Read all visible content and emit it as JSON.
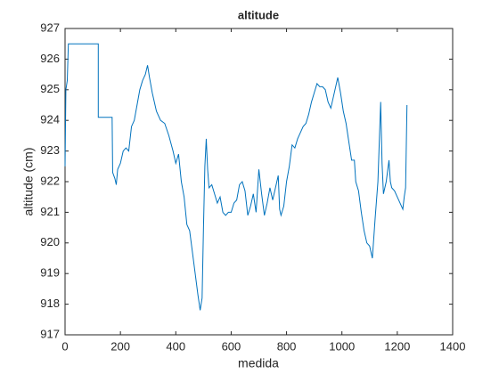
{
  "chart_data": {
    "type": "line",
    "title": "altitude",
    "x_label": "medida",
    "y_label": "altitude (cm)",
    "color": "#0072bd",
    "grid": false,
    "xlim": [
      0,
      1400
    ],
    "xticks": [
      0,
      200,
      400,
      600,
      800,
      1000,
      1200,
      1400
    ],
    "ylim": [
      917,
      927
    ],
    "yticks": [
      917,
      918,
      919,
      920,
      921,
      922,
      923,
      924,
      925,
      926,
      927
    ],
    "x": [
      0,
      3,
      8,
      12,
      120,
      120,
      170,
      172,
      180,
      185,
      190,
      200,
      210,
      220,
      230,
      240,
      250,
      260,
      270,
      280,
      290,
      298,
      305,
      315,
      330,
      345,
      360,
      375,
      390,
      400,
      410,
      420,
      430,
      440,
      450,
      460,
      470,
      480,
      488,
      495,
      500,
      505,
      510,
      515,
      520,
      530,
      540,
      550,
      560,
      570,
      580,
      590,
      600,
      610,
      620,
      630,
      640,
      650,
      660,
      670,
      680,
      690,
      700,
      710,
      720,
      730,
      740,
      750,
      760,
      770,
      775,
      780,
      790,
      800,
      810,
      820,
      830,
      840,
      850,
      860,
      870,
      880,
      890,
      900,
      910,
      920,
      930,
      940,
      950,
      960,
      970,
      980,
      985,
      995,
      1005,
      1015,
      1025,
      1035,
      1045,
      1050,
      1060,
      1070,
      1080,
      1090,
      1100,
      1110,
      1120,
      1130,
      1140,
      1145,
      1150,
      1160,
      1170,
      1175,
      1180,
      1190,
      1200,
      1210,
      1220,
      1225,
      1230,
      1235
    ],
    "values": [
      922.5,
      925.0,
      925.3,
      926.5,
      926.5,
      924.1,
      924.1,
      922.3,
      922.1,
      921.9,
      922.4,
      922.6,
      923.0,
      923.1,
      923.0,
      923.8,
      924.0,
      924.5,
      925.0,
      925.3,
      925.5,
      925.8,
      925.4,
      924.9,
      924.3,
      924.0,
      923.9,
      923.5,
      923.0,
      922.6,
      922.9,
      922.0,
      921.5,
      920.6,
      920.4,
      919.7,
      919.0,
      918.3,
      917.8,
      918.2,
      920.5,
      922.5,
      923.4,
      922.4,
      921.8,
      921.9,
      921.6,
      921.3,
      921.5,
      921.0,
      920.9,
      921.0,
      921.0,
      921.3,
      921.4,
      921.9,
      922.0,
      921.7,
      920.9,
      921.2,
      921.6,
      921.0,
      922.4,
      921.6,
      920.9,
      921.3,
      921.8,
      921.4,
      921.8,
      922.2,
      921.1,
      920.9,
      921.2,
      922.0,
      922.5,
      923.2,
      923.1,
      923.4,
      923.6,
      923.8,
      923.9,
      924.2,
      924.6,
      924.9,
      925.2,
      925.1,
      925.1,
      925.0,
      924.6,
      924.4,
      924.8,
      925.2,
      925.4,
      924.9,
      924.3,
      923.9,
      923.3,
      922.7,
      922.7,
      922.0,
      921.7,
      921.0,
      920.4,
      920.0,
      919.9,
      919.5,
      920.8,
      922.0,
      924.6,
      922.6,
      921.6,
      922.0,
      922.7,
      922.0,
      921.8,
      921.7,
      921.5,
      921.3,
      921.1,
      921.5,
      921.8,
      924.5
    ]
  }
}
